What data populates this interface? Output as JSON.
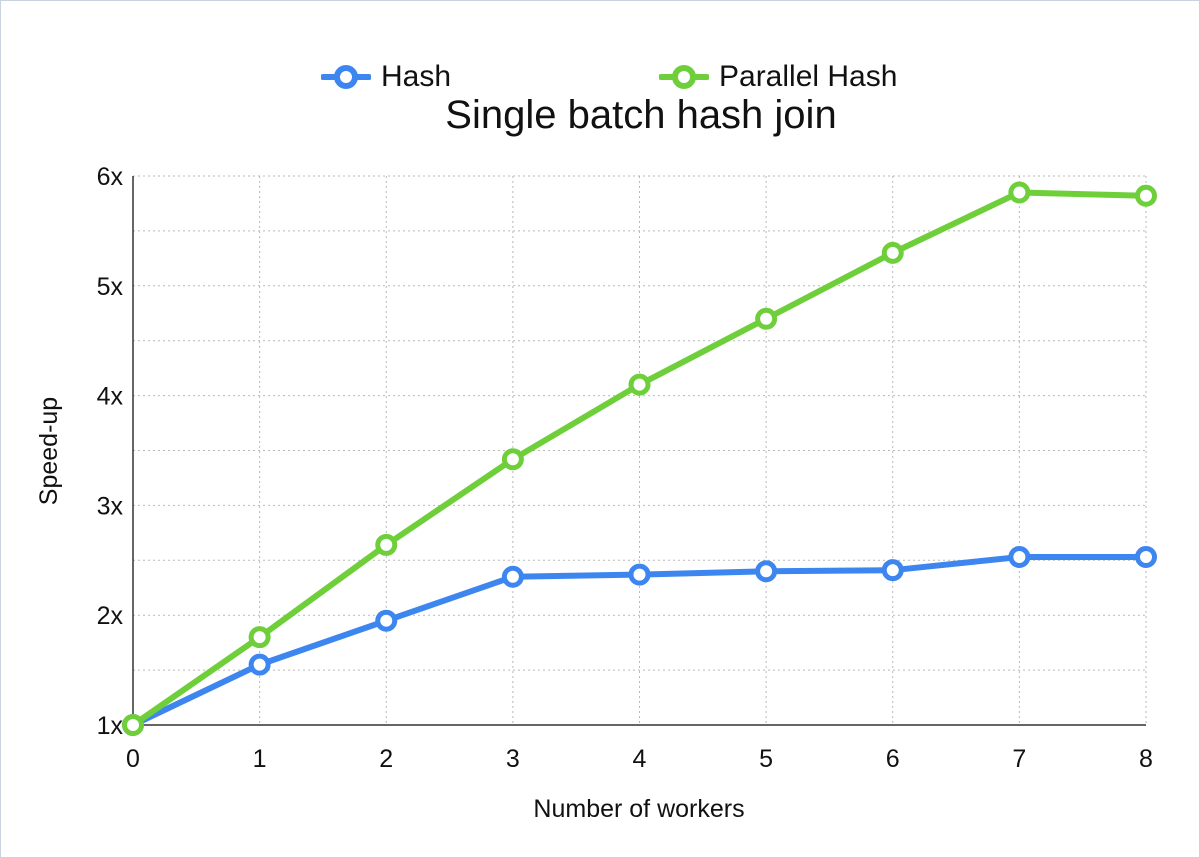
{
  "chart_data": {
    "type": "line",
    "title": "Single batch hash join",
    "xlabel": "Number of workers",
    "ylabel": "Speed-up",
    "x": [
      0,
      1,
      2,
      3,
      4,
      5,
      6,
      7,
      8
    ],
    "x_tick_labels": [
      "0",
      "1",
      "2",
      "3",
      "4",
      "5",
      "6",
      "7",
      "8"
    ],
    "xlim": [
      0,
      8
    ],
    "ylim": [
      1,
      6
    ],
    "y_ticks": [
      1,
      2,
      3,
      4,
      5,
      6
    ],
    "y_tick_labels": [
      "1x",
      "2x",
      "3x",
      "4x",
      "5x",
      "6x"
    ],
    "grid": true,
    "grid_style": "dotted",
    "legend_position": "top-center",
    "series": [
      {
        "name": "Hash",
        "color": "#3d86f0",
        "values": [
          1.0,
          1.55,
          1.95,
          2.35,
          2.37,
          2.4,
          2.41,
          2.53,
          2.53
        ]
      },
      {
        "name": "Parallel Hash",
        "color": "#6fcf3a",
        "values": [
          1.0,
          1.8,
          2.64,
          3.42,
          4.1,
          4.7,
          5.3,
          5.85,
          5.82
        ]
      }
    ]
  }
}
